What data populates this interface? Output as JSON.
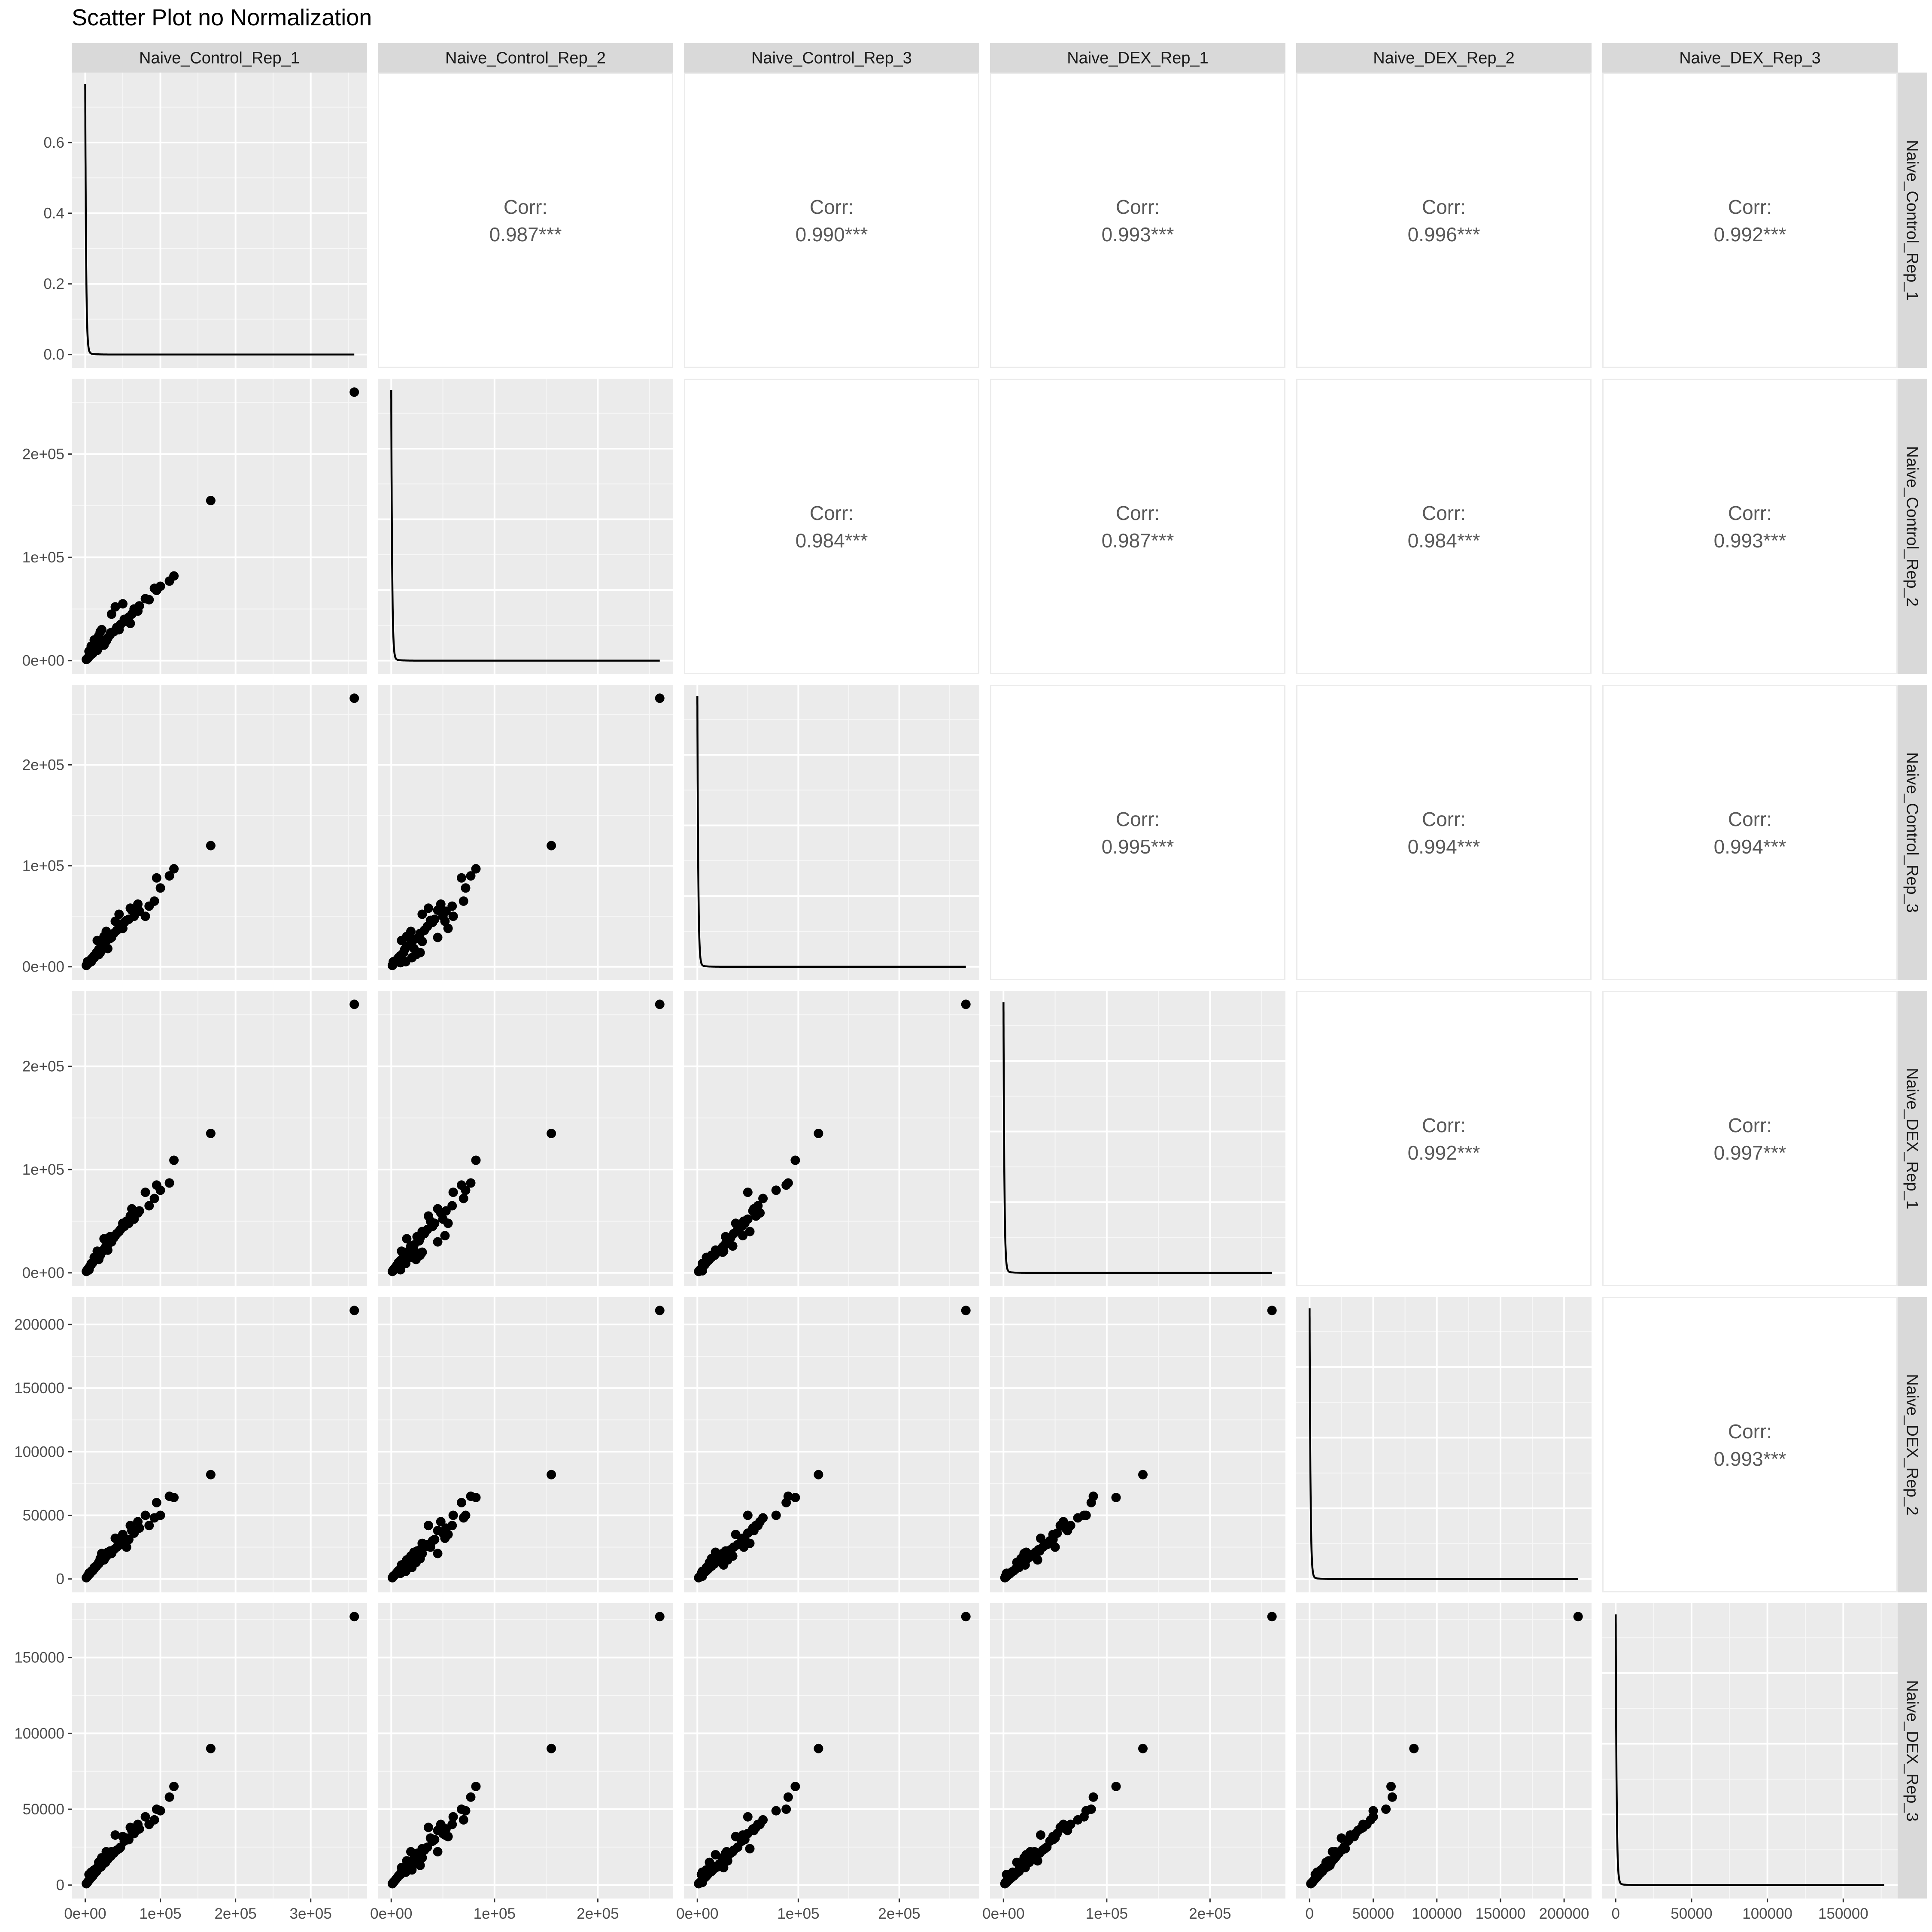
{
  "title": "Scatter Plot no Normalization",
  "chart_data": {
    "type": "scatter",
    "title": "Scatter Plot no Normalization",
    "layout": "pairs matrix",
    "variables": [
      "Naive_Control_Rep_1",
      "Naive_Control_Rep_2",
      "Naive_Control_Rep_3",
      "Naive_DEX_Rep_1",
      "Naive_DEX_Rep_2",
      "Naive_DEX_Rep_3"
    ],
    "max_values": [
      358000,
      260000,
      266000,
      260000,
      211000,
      177000
    ],
    "axes": [
      {
        "variable": "Naive_Control_Rep_1",
        "range": [
          -18000,
          375000
        ],
        "ticks": [
          0,
          100000,
          200000,
          300000
        ],
        "tick_labels": [
          "0e+00",
          "1e+05",
          "2e+05",
          "3e+05"
        ]
      },
      {
        "variable": "Naive_Control_Rep_2",
        "range": [
          -13000,
          273000
        ],
        "ticks": [
          0,
          100000,
          200000
        ],
        "tick_labels": [
          "0e+00",
          "1e+05",
          "2e+05"
        ]
      },
      {
        "variable": "Naive_Control_Rep_3",
        "range": [
          -13300,
          279300
        ],
        "ticks": [
          0,
          100000,
          200000
        ],
        "tick_labels": [
          "0e+00",
          "1e+05",
          "2e+05"
        ]
      },
      {
        "variable": "Naive_DEX_Rep_1",
        "range": [
          -13000,
          273000
        ],
        "ticks": [
          0,
          100000,
          200000
        ],
        "tick_labels": [
          "0e+00",
          "1e+05",
          "2e+05"
        ]
      },
      {
        "variable": "Naive_DEX_Rep_2",
        "range": [
          -10550,
          221550
        ],
        "ticks": [
          0,
          50000,
          100000,
          150000,
          200000
        ],
        "tick_labels": [
          "0",
          "50000",
          "100000",
          "150000",
          "200000"
        ]
      },
      {
        "variable": "Naive_DEX_Rep_3",
        "range": [
          -8850,
          185850
        ],
        "ticks": [
          0,
          50000,
          100000,
          150000
        ],
        "tick_labels": [
          "0",
          "50000",
          "100000",
          "150000"
        ]
      }
    ],
    "density_axis": {
      "range": [
        -0.038,
        0.798
      ],
      "ticks": [
        0.0,
        0.2,
        0.4,
        0.6
      ],
      "tick_labels": [
        "0.0",
        "0.2",
        "0.4",
        "0.6"
      ]
    },
    "correlations": [
      {
        "row": 0,
        "col": 1,
        "label": "Corr:",
        "value": "0.987***"
      },
      {
        "row": 0,
        "col": 2,
        "label": "Corr:",
        "value": "0.990***"
      },
      {
        "row": 0,
        "col": 3,
        "label": "Corr:",
        "value": "0.993***"
      },
      {
        "row": 0,
        "col": 4,
        "label": "Corr:",
        "value": "0.996***"
      },
      {
        "row": 0,
        "col": 5,
        "label": "Corr:",
        "value": "0.992***"
      },
      {
        "row": 1,
        "col": 2,
        "label": "Corr:",
        "value": "0.984***"
      },
      {
        "row": 1,
        "col": 3,
        "label": "Corr:",
        "value": "0.987***"
      },
      {
        "row": 1,
        "col": 4,
        "label": "Corr:",
        "value": "0.984***"
      },
      {
        "row": 1,
        "col": 5,
        "label": "Corr:",
        "value": "0.993***"
      },
      {
        "row": 2,
        "col": 3,
        "label": "Corr:",
        "value": "0.995***"
      },
      {
        "row": 2,
        "col": 4,
        "label": "Corr:",
        "value": "0.994***"
      },
      {
        "row": 2,
        "col": 5,
        "label": "Corr:",
        "value": "0.994***"
      },
      {
        "row": 3,
        "col": 4,
        "label": "Corr:",
        "value": "0.992***"
      },
      {
        "row": 3,
        "col": 5,
        "label": "Corr:",
        "value": "0.997***"
      },
      {
        "row": 4,
        "col": 5,
        "label": "Corr:",
        "value": "0.993***"
      }
    ],
    "samples": [
      [
        358000,
        260000,
        266000,
        260000,
        211000,
        177000
      ],
      [
        167000,
        155000,
        120000,
        135000,
        82000,
        90000
      ],
      [
        118000,
        82000,
        97000,
        109000,
        64000,
        65000
      ],
      [
        112000,
        77000,
        90000,
        87000,
        65000,
        58000
      ],
      [
        100000,
        72000,
        78000,
        80000,
        50000,
        49000
      ],
      [
        92000,
        70000,
        65000,
        72000,
        48000,
        43000
      ],
      [
        85000,
        59000,
        60000,
        65000,
        42000,
        40000
      ],
      [
        72000,
        53000,
        55000,
        60000,
        40000,
        37000
      ],
      [
        65000,
        50000,
        50000,
        52000,
        36000,
        34000
      ],
      [
        58000,
        42000,
        47000,
        48000,
        31000,
        30000
      ],
      [
        52000,
        40000,
        44000,
        45000,
        30000,
        29000
      ],
      [
        47000,
        35000,
        40000,
        42000,
        27000,
        25000
      ],
      [
        42000,
        32000,
        36000,
        38000,
        25000,
        23000
      ],
      [
        38000,
        28000,
        33000,
        34000,
        23000,
        21000
      ],
      [
        34000,
        27000,
        30000,
        31000,
        21000,
        19000
      ],
      [
        30000,
        22000,
        27000,
        27000,
        19000,
        17000
      ],
      [
        27000,
        20000,
        25000,
        25000,
        17000,
        15000
      ],
      [
        24000,
        18000,
        22000,
        22000,
        15000,
        14000
      ],
      [
        21000,
        15000,
        20000,
        20000,
        14000,
        12000
      ],
      [
        18000,
        13000,
        17000,
        17000,
        12000,
        11000
      ],
      [
        15000,
        12000,
        14000,
        15000,
        10000,
        9000
      ],
      [
        12000,
        9000,
        11000,
        12000,
        8000,
        7500
      ],
      [
        10000,
        7000,
        9000,
        10000,
        6500,
        6000
      ],
      [
        8000,
        6000,
        7500,
        8000,
        5500,
        5000
      ],
      [
        6000,
        4500,
        5500,
        6000,
        4000,
        3800
      ],
      [
        4000,
        3000,
        3800,
        4000,
        2800,
        2500
      ],
      [
        2500,
        1800,
        2300,
        2500,
        1700,
        1500
      ],
      [
        1500,
        1100,
        1300,
        1400,
        1000,
        900
      ],
      [
        20000,
        28000,
        14000,
        17000,
        16000,
        13000
      ],
      [
        35000,
        45000,
        29000,
        30000,
        20000,
        22000
      ],
      [
        50000,
        55000,
        38000,
        48000,
        35000,
        32000
      ],
      [
        25000,
        15000,
        30000,
        33000,
        15000,
        16000
      ],
      [
        60000,
        36000,
        58000,
        55000,
        42000,
        38000
      ],
      [
        45000,
        30000,
        52000,
        40000,
        28000,
        24000
      ],
      [
        30000,
        22000,
        18000,
        22000,
        21000,
        20000
      ],
      [
        80000,
        60000,
        50000,
        78000,
        50000,
        45000
      ],
      [
        40000,
        52000,
        45000,
        36000,
        32000,
        33000
      ],
      [
        22000,
        30000,
        25000,
        20000,
        20000,
        18000
      ],
      [
        12000,
        20000,
        9000,
        15000,
        9000,
        10000
      ],
      [
        70000,
        48000,
        62000,
        58000,
        45000,
        40000
      ],
      [
        55000,
        38000,
        46000,
        50000,
        25000,
        31000
      ],
      [
        16000,
        10000,
        26000,
        21000,
        11000,
        11500
      ],
      [
        8000,
        14000,
        5000,
        9000,
        6000,
        8500
      ],
      [
        28000,
        19000,
        35000,
        26000,
        18000,
        22000
      ],
      [
        5000,
        9000,
        4000,
        3000,
        4500,
        7000
      ],
      [
        95000,
        68000,
        88000,
        85000,
        60000,
        50000
      ],
      [
        33000,
        25000,
        28000,
        35000,
        22000,
        21000
      ],
      [
        62000,
        45000,
        56000,
        62000,
        38000,
        36000
      ],
      [
        18000,
        24000,
        12000,
        13000,
        13000,
        15000
      ],
      [
        3000,
        2000,
        5000,
        2000,
        2200,
        1800
      ]
    ]
  }
}
